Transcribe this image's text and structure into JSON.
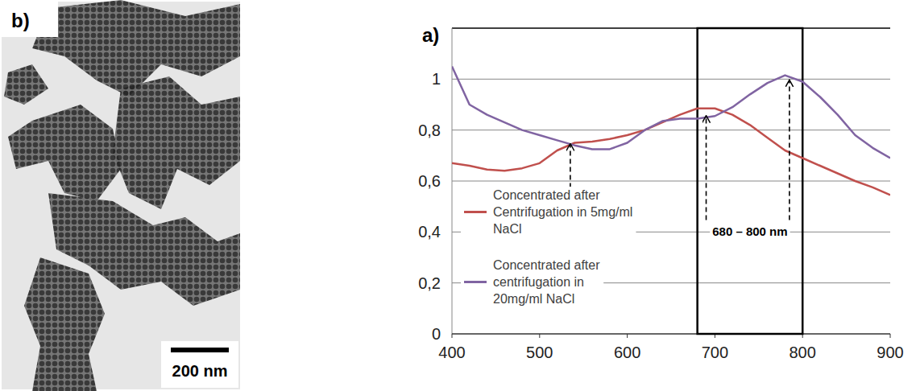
{
  "image_panel": {
    "label": "b)",
    "scale_bar": "200 nm"
  },
  "chart_data": {
    "type": "line",
    "label": "a)",
    "x": [
      400,
      420,
      440,
      460,
      480,
      500,
      520,
      540,
      560,
      580,
      600,
      620,
      640,
      660,
      680,
      700,
      720,
      740,
      760,
      780,
      800,
      820,
      840,
      860,
      880,
      900
    ],
    "series": [
      {
        "name": " Concentrated after Centrifugation in 5mg/ml NaCl",
        "color": "#c0504d",
        "values": [
          0.67,
          0.66,
          0.645,
          0.64,
          0.65,
          0.67,
          0.72,
          0.75,
          0.755,
          0.765,
          0.78,
          0.8,
          0.83,
          0.86,
          0.885,
          0.885,
          0.86,
          0.82,
          0.77,
          0.72,
          0.69,
          0.66,
          0.63,
          0.6,
          0.575,
          0.545
        ]
      },
      {
        "name": "Concentrated after centrifugation in 20mg/ml NaCl",
        "color": "#8064a2",
        "values": [
          1.05,
          0.9,
          0.86,
          0.83,
          0.8,
          0.78,
          0.76,
          0.74,
          0.725,
          0.725,
          0.75,
          0.8,
          0.835,
          0.845,
          0.845,
          0.855,
          0.89,
          0.94,
          0.985,
          1.015,
          0.99,
          0.93,
          0.86,
          0.78,
          0.73,
          0.69
        ]
      }
    ],
    "xlim": [
      400,
      900
    ],
    "xticks": [
      400,
      500,
      600,
      700,
      800,
      900
    ],
    "ylim": [
      0,
      1.2
    ],
    "yticks": [
      0,
      {
        "value": 0.2,
        "label": "0,2"
      },
      {
        "value": 0.4,
        "label": "0,4"
      },
      {
        "value": 0.6,
        "label": "0,6"
      },
      {
        "value": 0.8,
        "label": "0,8"
      },
      1
    ],
    "grid": true,
    "legend": "lower left",
    "highlight": {
      "range": [
        680,
        800
      ],
      "text": "680 – 800 nm"
    },
    "arrows": [
      {
        "x": 535,
        "y": 0.75
      },
      {
        "x": 690,
        "y": 0.86
      },
      {
        "x": 785,
        "y": 1.0
      }
    ]
  }
}
